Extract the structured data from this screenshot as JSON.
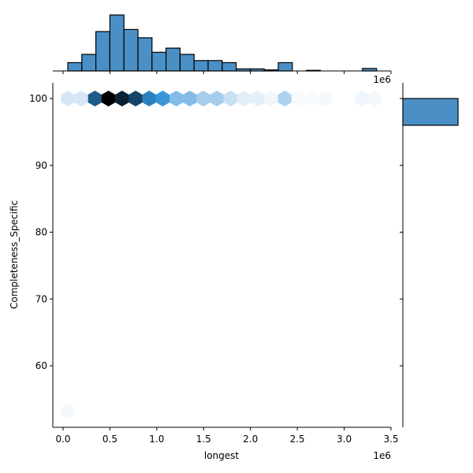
{
  "chart_data": {
    "type": "hexbin_jointplot",
    "title": "",
    "xlabel": "longest",
    "ylabel": "Completeness_Specific",
    "x_offset_text": "1e6",
    "top_offset_text": "1e6",
    "xlim": [
      -0.1,
      3.55
    ],
    "ylim": [
      51,
      102.5
    ],
    "xticks": [
      "0.0",
      "0.5",
      "1.0",
      "1.5",
      "2.0",
      "2.5",
      "3.0",
      "3.5"
    ],
    "xtick_values": [
      0.0,
      0.5,
      1.0,
      1.5,
      2.0,
      2.5,
      3.0,
      3.5
    ],
    "yticks": [
      "60",
      "70",
      "80",
      "90",
      "100"
    ],
    "ytick_values": [
      60,
      70,
      80,
      90,
      100
    ],
    "grid": false,
    "hexbin": {
      "y_row": 100,
      "x_centers": [
        0.05,
        0.19,
        0.33,
        0.47,
        0.61,
        0.75,
        0.89,
        1.03,
        1.17,
        1.31,
        1.45,
        1.59,
        1.73,
        1.87,
        2.01,
        2.15,
        2.29,
        2.43,
        2.57,
        2.71,
        3.19,
        3.33
      ],
      "colors": [
        "#d6e6f5",
        "#d6e6f5",
        "#1b5a8a",
        "#000000",
        "#0a2234",
        "#144466",
        "#2b80c2",
        "#3a95d8",
        "#83bce6",
        "#83bce6",
        "#a5cdec",
        "#a5cdec",
        "#c8e0f4",
        "#e2eefa",
        "#e2eefa",
        "#f0f6fc",
        "#aed2ef",
        "#f7fafd",
        "#f7fafd",
        "#f3f8fd",
        "#eef5fc",
        "#f3f8fd"
      ],
      "outlier": {
        "x": 0.05,
        "y": 53.2,
        "color": "#f5f8fc"
      }
    },
    "marginal_x": {
      "type": "histogram",
      "bin_width": 0.15,
      "bin_start": 0.05,
      "counts": [
        4,
        8,
        19,
        27,
        20,
        16,
        9,
        11,
        8,
        5,
        5,
        4,
        1,
        1,
        0.5,
        4,
        0,
        0.3,
        0,
        0,
        0,
        1.2
      ],
      "max_count": 27,
      "color": "#4a90c6"
    },
    "marginal_y": {
      "type": "histogram",
      "bins": [
        {
          "from": 96,
          "to": 100,
          "count": 1
        }
      ],
      "color": "#4a90c6"
    }
  }
}
